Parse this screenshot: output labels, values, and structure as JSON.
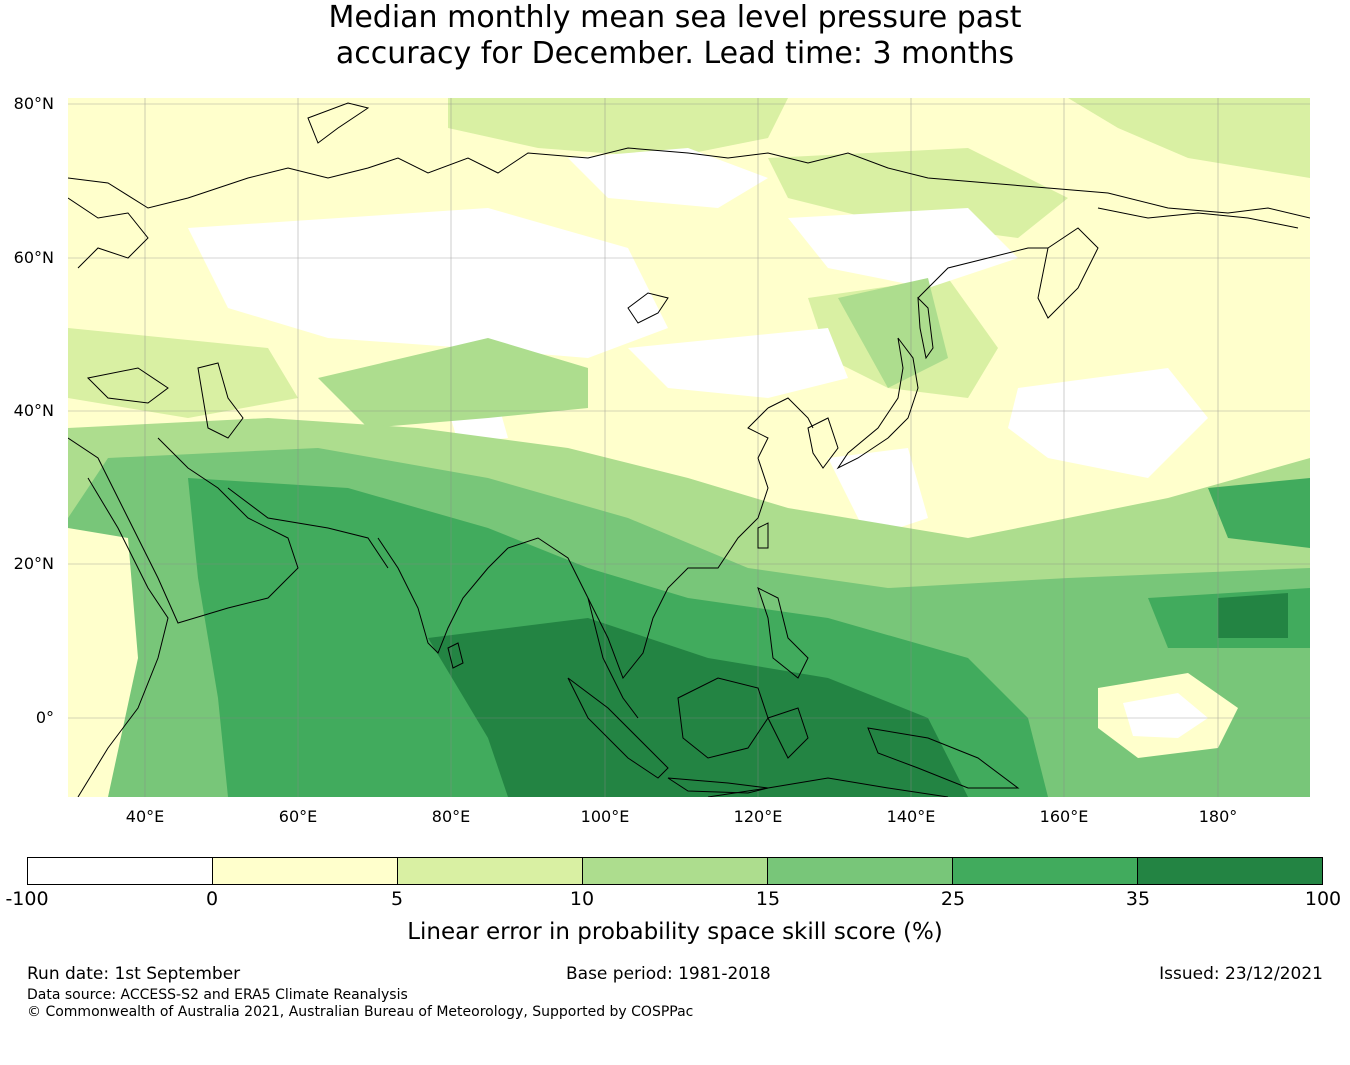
{
  "title": {
    "line1": "Median monthly mean sea level pressure past",
    "line2": "accuracy for December. Lead time: 3 months"
  },
  "map": {
    "lat_labels": [
      "80°N",
      "60°N",
      "40°N",
      "20°N",
      "0°"
    ],
    "lon_labels": [
      "40°E",
      "60°E",
      "80°E",
      "100°E",
      "120°E",
      "140°E",
      "160°E",
      "180°"
    ]
  },
  "colorbar": {
    "ticks": [
      "-100",
      "0",
      "5",
      "10",
      "15",
      "25",
      "35",
      "100"
    ],
    "colors": [
      "#ffffff",
      "#ffffcc",
      "#d9f0a3",
      "#addd8e",
      "#78c679",
      "#41ab5d",
      "#238443"
    ],
    "label": "Linear error in probability space skill score (%)"
  },
  "footer": {
    "run_date": "Run date: 1st September",
    "base_period": "Base period: 1981-2018",
    "issued": "Issued: 23/12/2021",
    "data_source": "Data source: ACCESS-S2 and ERA5 Climate Reanalysis",
    "copyright": "© Commonwealth of Australia 2021, Australian Bureau of Meteorology, Supported by COSPPac"
  }
}
